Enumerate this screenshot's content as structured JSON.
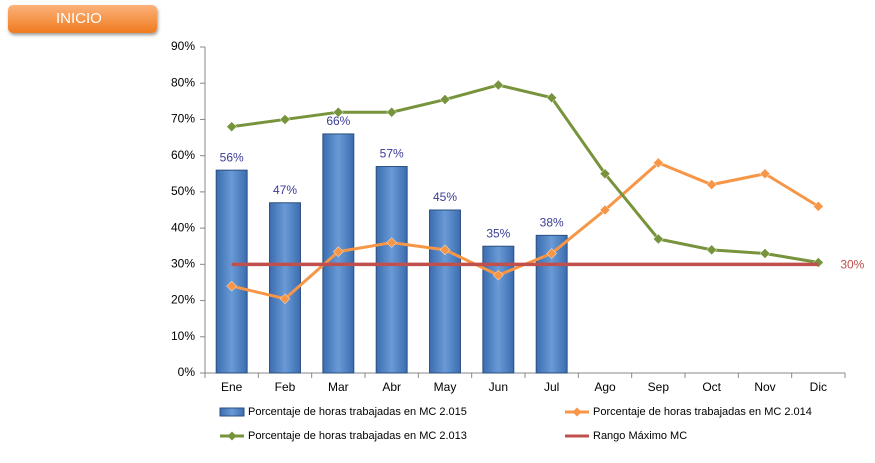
{
  "button_label": "INICIO",
  "chart_data": {
    "type": "bar",
    "categories": [
      "Ene",
      "Feb",
      "Mar",
      "Abr",
      "May",
      "Jun",
      "Jul",
      "Ago",
      "Sep",
      "Oct",
      "Nov",
      "Dic"
    ],
    "series": [
      {
        "name": "Porcentaje de horas trabajadas en MC 2.015",
        "type": "bar",
        "color": "#4f81bd",
        "values": [
          56,
          47,
          66,
          57,
          45,
          35,
          38,
          null,
          null,
          null,
          null,
          null
        ],
        "value_labels": [
          "56%",
          "47%",
          "66%",
          "57%",
          "45%",
          "35%",
          "38%",
          null,
          null,
          null,
          null,
          null
        ]
      },
      {
        "name": "Porcentaje de horas trabajadas en MC 2.014",
        "type": "line",
        "color": "#f79646",
        "marker": "diamond",
        "values": [
          24,
          20.5,
          33.5,
          36,
          34,
          27,
          33,
          45,
          58,
          52,
          55,
          46
        ]
      },
      {
        "name": "Porcentaje de horas trabajadas en MC 2.013",
        "type": "line",
        "color": "#77933c",
        "marker": "diamond",
        "values": [
          68,
          70,
          72,
          72,
          75.5,
          79.5,
          76,
          55,
          37,
          34,
          33,
          30.5
        ]
      },
      {
        "name": "Rango Máximo MC",
        "type": "line",
        "color": "#c0504d",
        "values": [
          30,
          30,
          30,
          30,
          30,
          30,
          30,
          30,
          30,
          30,
          30,
          30
        ],
        "value_labels": [
          null,
          null,
          null,
          null,
          null,
          null,
          null,
          null,
          null,
          null,
          null,
          "30%"
        ]
      }
    ],
    "ylim": [
      0,
      90
    ],
    "yticks": [
      {
        "value": 0,
        "label": "0%"
      },
      {
        "value": 10,
        "label": "10%"
      },
      {
        "value": 20,
        "label": "20%"
      },
      {
        "value": 30,
        "label": "30%"
      },
      {
        "value": 40,
        "label": "40%"
      },
      {
        "value": 50,
        "label": "50%"
      },
      {
        "value": 60,
        "label": "60%"
      },
      {
        "value": 70,
        "label": "70%"
      },
      {
        "value": 80,
        "label": "80%"
      },
      {
        "value": 90,
        "label": "90%"
      }
    ],
    "grid": false
  }
}
